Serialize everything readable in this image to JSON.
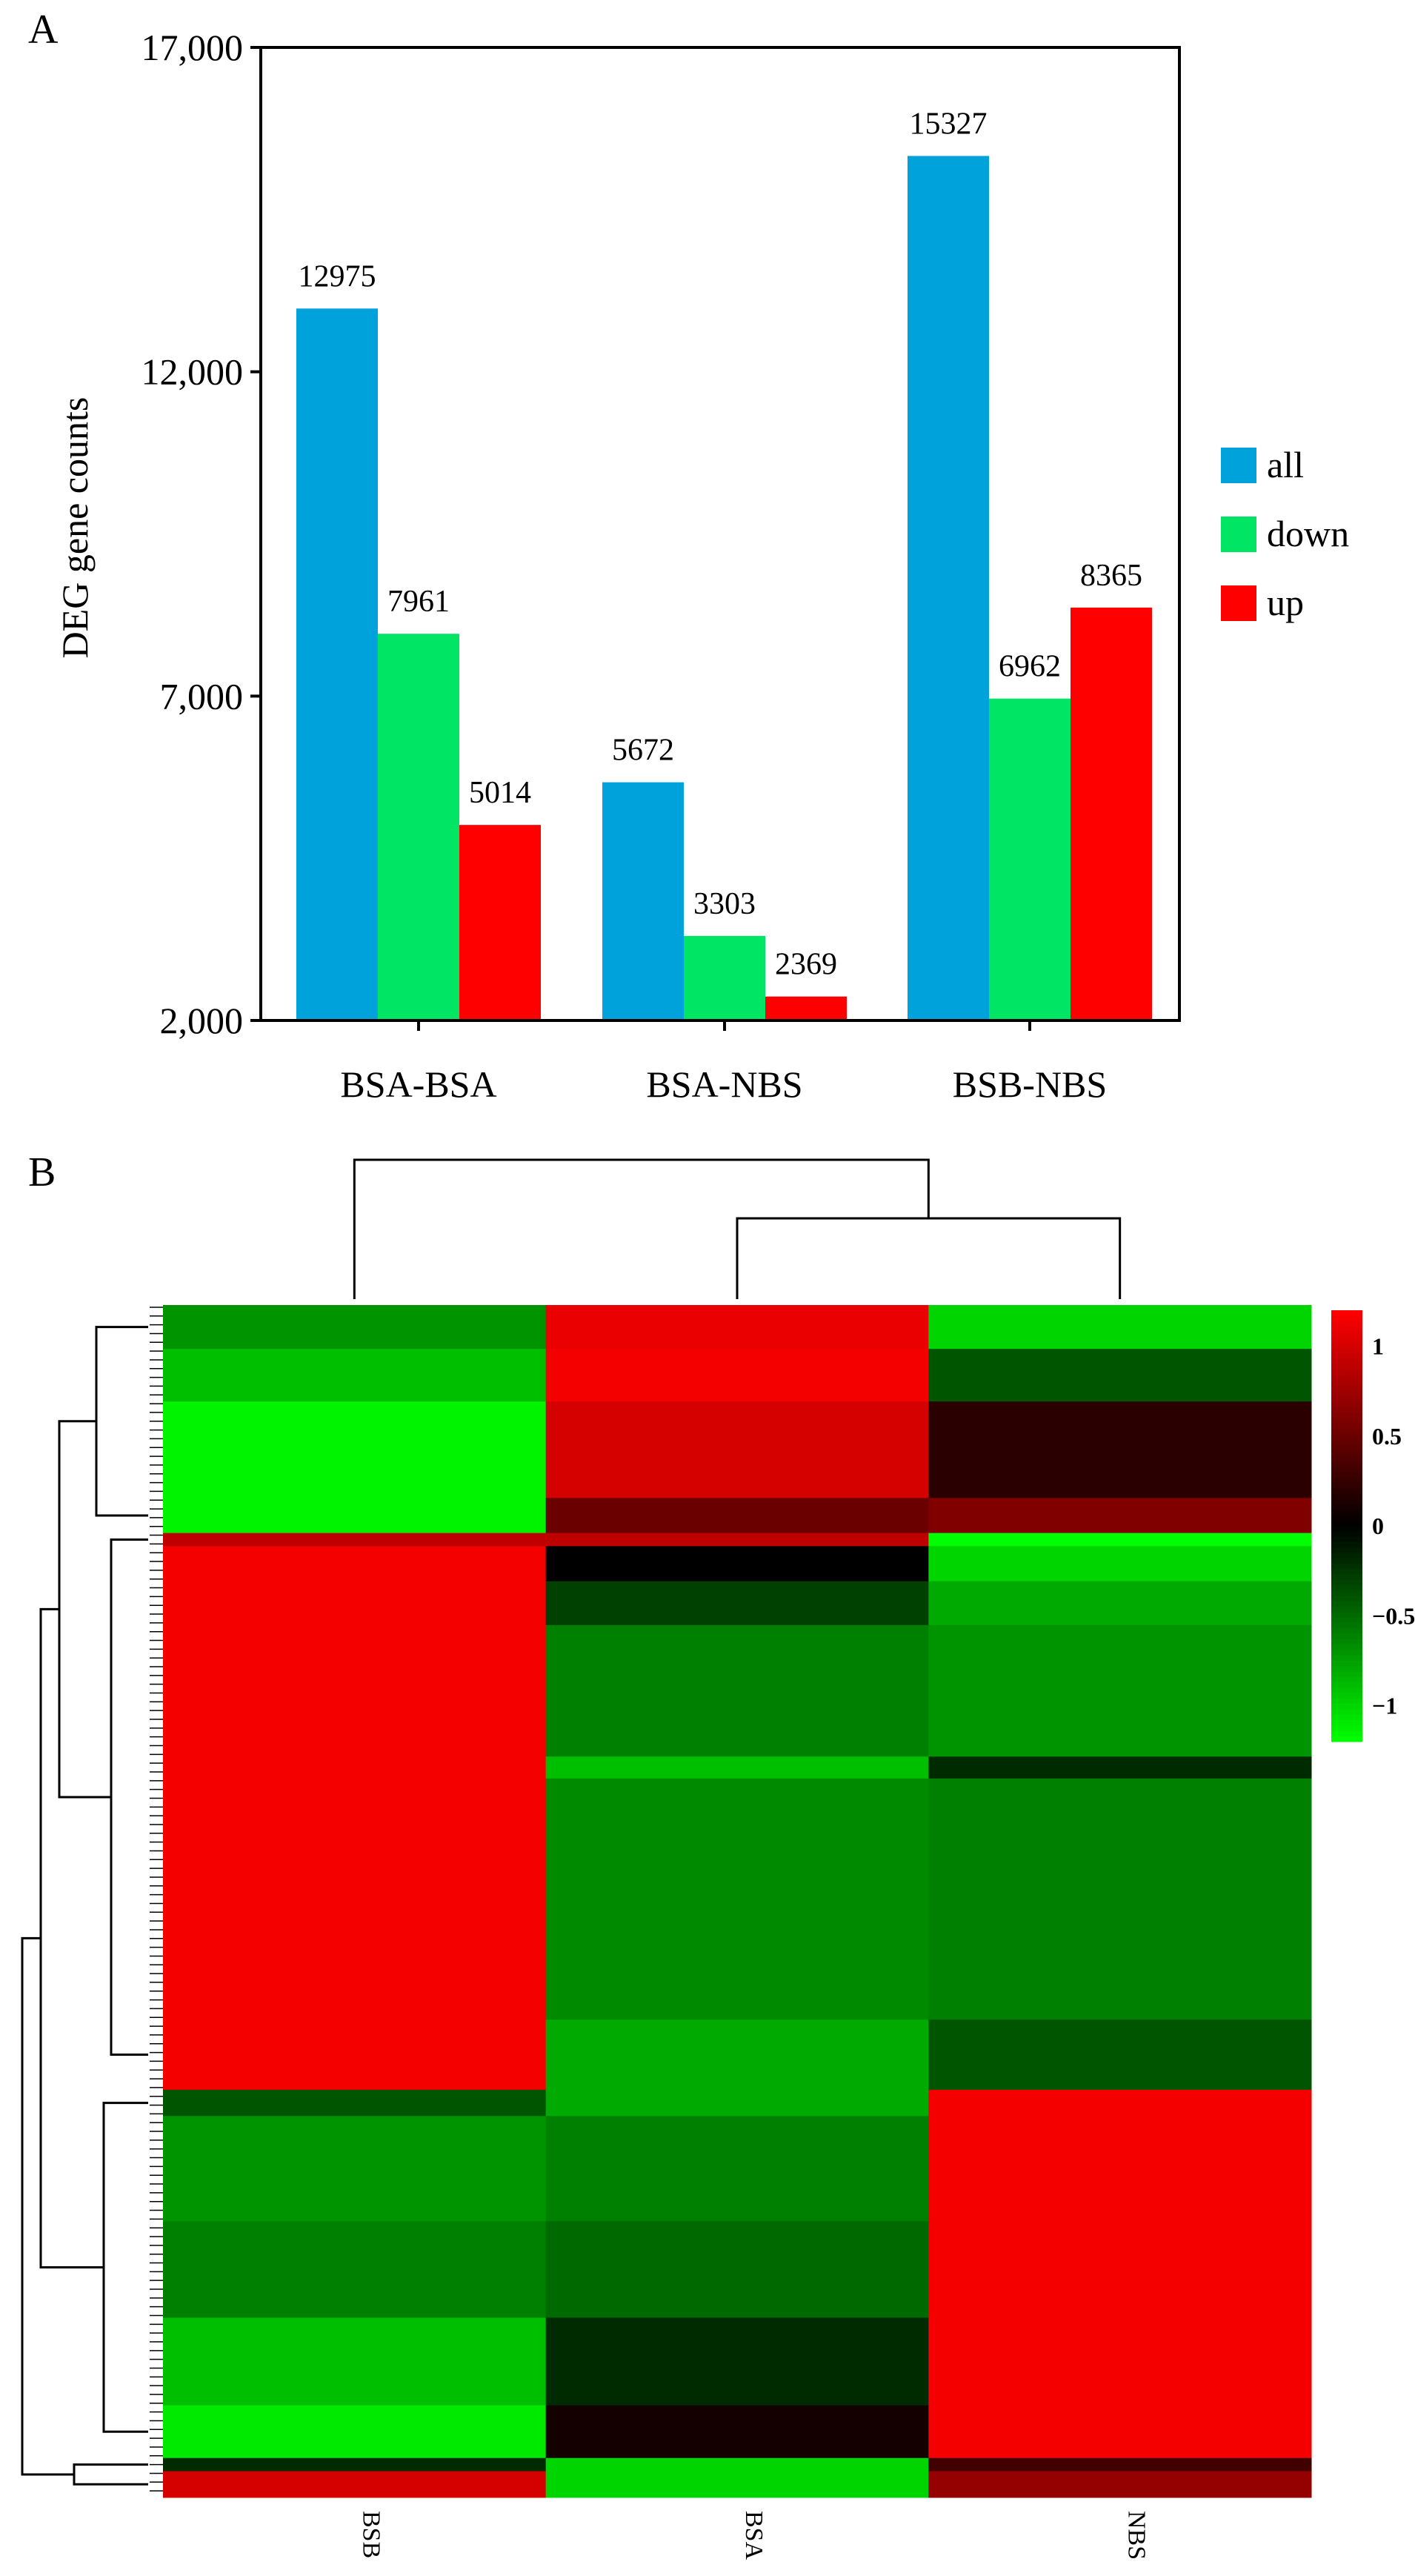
{
  "chart_data": [
    {
      "panel": "A",
      "type": "bar",
      "categories": [
        "BSA-BSA",
        "BSA-NBS",
        "BSB-NBS"
      ],
      "series": [
        {
          "name": "all",
          "color": "#00a2dc",
          "values": [
            12975,
            5672,
            15327
          ]
        },
        {
          "name": "down",
          "color": "#00e564",
          "values": [
            7961,
            3303,
            6962
          ]
        },
        {
          "name": "up",
          "color": "#ff0000",
          "values": [
            5014,
            2369,
            8365
          ]
        }
      ],
      "value_labels": [
        [
          "12975",
          "7961",
          "5014"
        ],
        [
          "5672",
          "3303",
          "2369"
        ],
        [
          "15327",
          "6962",
          "8365"
        ]
      ],
      "ylabel": "DEG gene counts",
      "xlabel": "",
      "ylim": [
        2000,
        17000
      ],
      "yticks": [
        2000,
        7000,
        12000,
        17000
      ],
      "ytick_labels": [
        "2,000",
        "7,000",
        "12,000",
        "17,000"
      ],
      "legend": [
        "all",
        "down",
        "up"
      ],
      "legend_position": "right"
    },
    {
      "panel": "B",
      "type": "heatmap",
      "columns": [
        "BSB",
        "BSA",
        "NBS"
      ],
      "color_scale": {
        "low": "#00ff00",
        "mid": "#000000",
        "high": "#ff0000",
        "min": -1.2,
        "max": 1.2
      },
      "colorbar_ticks": [
        1,
        0.5,
        0,
        -0.5,
        -1
      ],
      "colorbar_labels": [
        "1",
        "0.5",
        "0",
        "−0.5",
        "−1"
      ],
      "column_dendrogram": "BSA and NBS join first, then BSB",
      "row_blocks": [
        {
          "rows": 10,
          "values": [
            -0.7,
            1.1,
            -1.0
          ]
        },
        {
          "rows": 12,
          "values": [
            -0.9,
            1.15,
            -0.4
          ]
        },
        {
          "rows": 22,
          "values": [
            -1.15,
            1.0,
            0.2
          ]
        },
        {
          "rows": 8,
          "values": [
            -1.15,
            0.5,
            0.6
          ]
        },
        {
          "rows": 3,
          "values": [
            0.9,
            0.9,
            -1.2
          ]
        },
        {
          "rows": 8,
          "values": [
            1.15,
            0.0,
            -1.0
          ]
        },
        {
          "rows": 10,
          "values": [
            1.15,
            -0.3,
            -0.8
          ]
        },
        {
          "rows": 30,
          "values": [
            1.15,
            -0.6,
            -0.7
          ]
        },
        {
          "rows": 5,
          "values": [
            1.15,
            -0.9,
            -0.2
          ]
        },
        {
          "rows": 55,
          "values": [
            1.15,
            -0.65,
            -0.6
          ]
        },
        {
          "rows": 16,
          "values": [
            1.15,
            -0.8,
            -0.4
          ]
        },
        {
          "rows": 6,
          "values": [
            -0.4,
            -0.8,
            1.15
          ]
        },
        {
          "rows": 24,
          "values": [
            -0.7,
            -0.6,
            1.15
          ]
        },
        {
          "rows": 22,
          "values": [
            -0.6,
            -0.5,
            1.15
          ]
        },
        {
          "rows": 20,
          "values": [
            -0.9,
            -0.2,
            1.15
          ]
        },
        {
          "rows": 12,
          "values": [
            -1.1,
            0.1,
            1.15
          ]
        },
        {
          "rows": 3,
          "values": [
            -0.2,
            -1.0,
            0.3
          ]
        },
        {
          "rows": 6,
          "values": [
            1.0,
            -1.0,
            0.7
          ]
        }
      ]
    }
  ],
  "panel_labels": {
    "a": "A",
    "b": "B"
  }
}
